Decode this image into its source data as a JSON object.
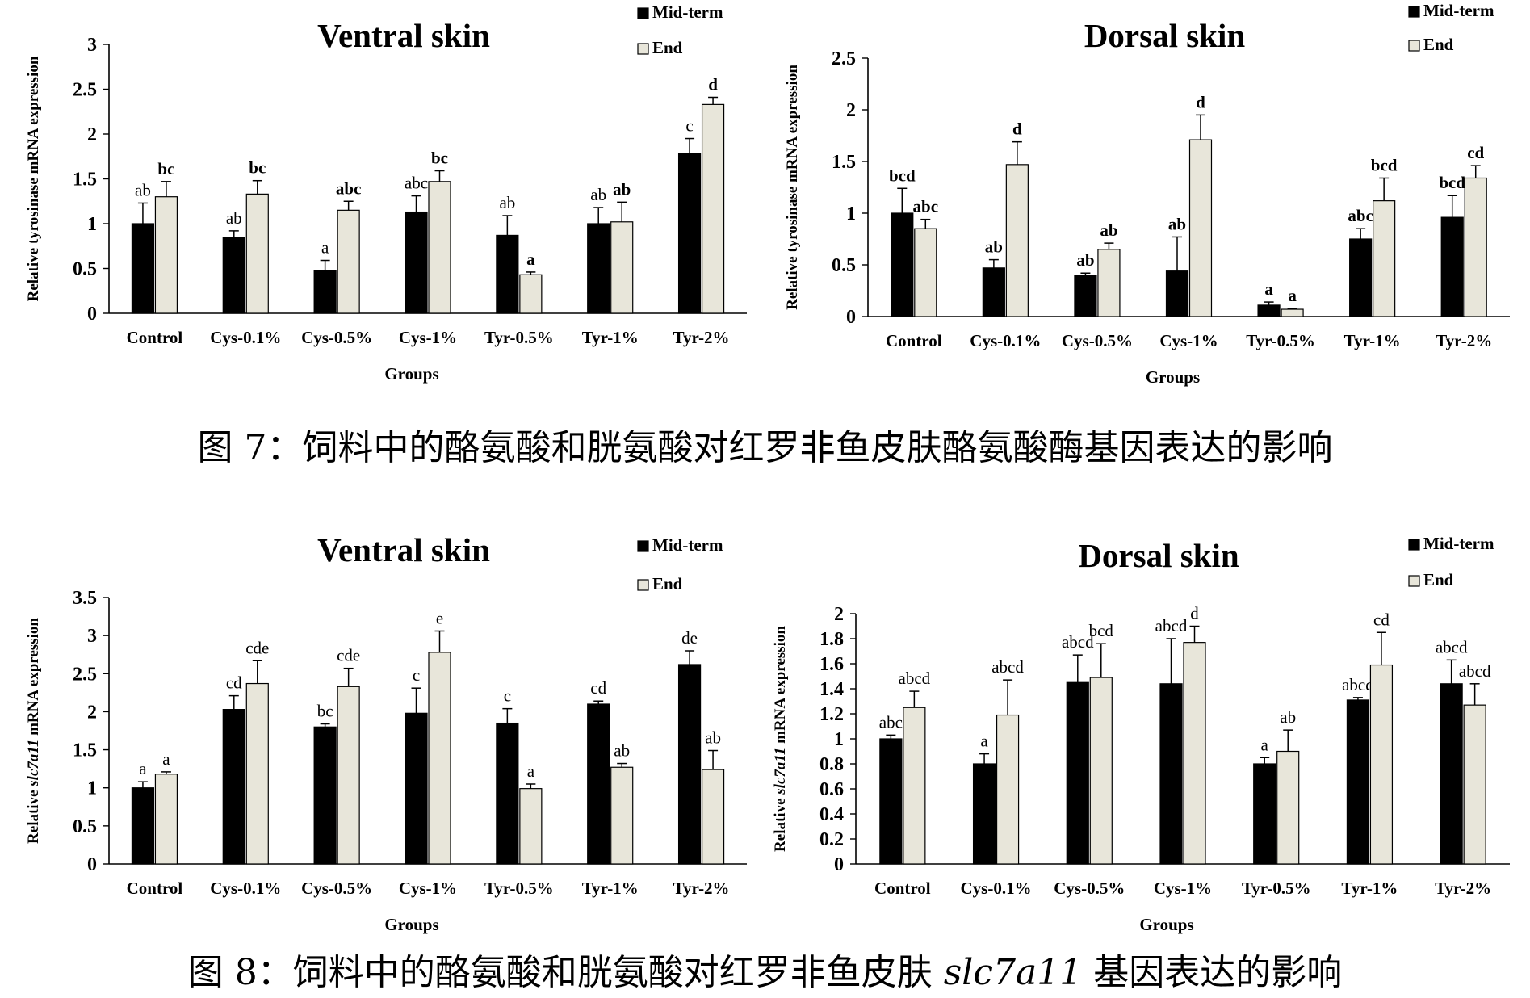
{
  "colors": {
    "mid": "#000000",
    "end": "#e8e6da",
    "axis": "#000000"
  },
  "captions": {
    "fig7": "图 7：饲料中的酪氨酸和胱氨酸对红罗非鱼皮肤酪氨酸酶基因表达的影响",
    "fig8_prefix": "图 8：饲料中的酪氨酸和胱氨酸对红罗非鱼皮肤 ",
    "fig8_gene": "slc7a11",
    "fig8_suffix": " 基因表达的影响"
  },
  "chart_data": [
    {
      "type": "bar",
      "title": "Ventral skin",
      "xlabel": "Groups",
      "ylabel": "Relative tyrosinase mRNA expression",
      "ylabel_parts": [
        {
          "t": "Relative tyrosinase mRNA expression",
          "i": false
        }
      ],
      "ylim": [
        0,
        3
      ],
      "yticks": [
        "0",
        "0.5",
        "1",
        "1.5",
        "2",
        "2.5",
        "3"
      ],
      "tick_step": 0.5,
      "legend_position": "top-right",
      "categories": [
        "Control",
        "Cys-0.1%",
        "Cys-0.5%",
        "Cys-1%",
        "Tyr-0.5%",
        "Tyr-1%",
        "Tyr-2%"
      ],
      "series": [
        {
          "name": "Mid-term",
          "values": [
            1.0,
            0.85,
            0.48,
            1.13,
            0.87,
            1.0,
            1.78
          ],
          "errors": [
            0.23,
            0.07,
            0.11,
            0.18,
            0.22,
            0.18,
            0.17
          ],
          "letters": [
            "ab",
            "ab",
            "a",
            "abc",
            "ab",
            "ab",
            "c"
          ]
        },
        {
          "name": "End",
          "values": [
            1.3,
            1.33,
            1.15,
            1.47,
            0.43,
            1.02,
            2.33
          ],
          "errors": [
            0.17,
            0.15,
            0.1,
            0.12,
            0.03,
            0.22,
            0.08
          ],
          "letters": [
            "bc",
            "bc",
            "abc",
            "bc",
            "a",
            "ab",
            "d"
          ]
        }
      ]
    },
    {
      "type": "bar",
      "title": "Dorsal skin",
      "xlabel": "Groups",
      "ylabel": "Relative tyrosinase mRNA expression",
      "ylabel_parts": [
        {
          "t": "Relative tyrosinase mRNA expression",
          "i": false
        }
      ],
      "ylim": [
        0,
        2.5
      ],
      "yticks": [
        "0",
        "0.5",
        "1",
        "1.5",
        "2",
        "2.5"
      ],
      "tick_step": 0.5,
      "legend_position": "top-right",
      "categories": [
        "Control",
        "Cys-0.1%",
        "Cys-0.5%",
        "Cys-1%",
        "Tyr-0.5%",
        "Tyr-1%",
        "Tyr-2%"
      ],
      "series": [
        {
          "name": "Mid-term",
          "values": [
            1.0,
            0.47,
            0.4,
            0.44,
            0.11,
            0.75,
            0.96
          ],
          "errors": [
            0.24,
            0.08,
            0.02,
            0.33,
            0.03,
            0.1,
            0.21
          ],
          "letters": [
            "bcd",
            "ab",
            "ab",
            "ab",
            "a",
            "abc",
            "bcd"
          ]
        },
        {
          "name": "End",
          "values": [
            0.85,
            1.47,
            0.65,
            1.71,
            0.07,
            1.12,
            1.34
          ],
          "errors": [
            0.09,
            0.22,
            0.06,
            0.24,
            0.01,
            0.22,
            0.12
          ],
          "letters": [
            "abc",
            "d",
            "ab",
            "d",
            "a",
            "bcd",
            "cd"
          ]
        }
      ]
    },
    {
      "type": "bar",
      "title": "Ventral skin",
      "xlabel": "Groups",
      "ylabel": "Relative slc7a11 mRNA expression",
      "ylabel_parts": [
        {
          "t": "Relative ",
          "i": false
        },
        {
          "t": "slc7a11",
          "i": true
        },
        {
          "t": " mRNA expression",
          "i": false
        }
      ],
      "ylim": [
        0,
        3.5
      ],
      "yticks": [
        "0",
        "0.5",
        "1",
        "1.5",
        "2",
        "2.5",
        "3",
        "3.5"
      ],
      "tick_step": 0.5,
      "legend_position": "top-right",
      "categories": [
        "Control",
        "Cys-0.1%",
        "Cys-0.5%",
        "Cys-1%",
        "Tyr-0.5%",
        "Tyr-1%",
        "Tyr-2%"
      ],
      "series": [
        {
          "name": "Mid-term",
          "values": [
            1.0,
            2.03,
            1.8,
            1.98,
            1.85,
            2.1,
            2.62
          ],
          "errors": [
            0.08,
            0.18,
            0.04,
            0.33,
            0.19,
            0.04,
            0.18
          ],
          "letters": [
            "a",
            "cd",
            "bc",
            "c",
            "c",
            "cd",
            "de"
          ]
        },
        {
          "name": "End",
          "values": [
            1.18,
            2.37,
            2.33,
            2.78,
            0.99,
            1.27,
            1.24
          ],
          "errors": [
            0.03,
            0.3,
            0.24,
            0.28,
            0.06,
            0.05,
            0.25
          ],
          "letters": [
            "a",
            "cde",
            "cde",
            "e",
            "a",
            "ab",
            "ab"
          ]
        }
      ]
    },
    {
      "type": "bar",
      "title": "Dorsal skin",
      "xlabel": "Groups",
      "ylabel": "Relative slc7a11 mRNA expression",
      "ylabel_parts": [
        {
          "t": "Relative ",
          "i": false
        },
        {
          "t": "slc7a11",
          "i": true
        },
        {
          "t": " mRNA expression",
          "i": false
        }
      ],
      "ylim": [
        0,
        2
      ],
      "yticks": [
        "0",
        "0.2",
        "0.4",
        "0.6",
        "0.8",
        "1",
        "1.2",
        "1.4",
        "1.6",
        "1.8",
        "2"
      ],
      "tick_step": 0.2,
      "legend_position": "top-right",
      "categories": [
        "Control",
        "Cys-0.1%",
        "Cys-0.5%",
        "Cys-1%",
        "Tyr-0.5%",
        "Tyr-1%",
        "Tyr-2%"
      ],
      "series": [
        {
          "name": "Mid-term",
          "values": [
            1.0,
            0.8,
            1.45,
            1.44,
            0.8,
            1.31,
            1.44
          ],
          "errors": [
            0.03,
            0.08,
            0.22,
            0.36,
            0.05,
            0.02,
            0.19
          ],
          "letters": [
            "abc",
            "a",
            "abcd",
            "abcd",
            "a",
            "abcd",
            "abcd"
          ]
        },
        {
          "name": "End",
          "values": [
            1.25,
            1.19,
            1.49,
            1.77,
            0.9,
            1.59,
            1.27
          ],
          "errors": [
            0.13,
            0.28,
            0.27,
            0.13,
            0.17,
            0.26,
            0.17
          ],
          "letters": [
            "abcd",
            "abcd",
            "bcd",
            "d",
            "ab",
            "cd",
            "abcd"
          ]
        }
      ]
    }
  ]
}
